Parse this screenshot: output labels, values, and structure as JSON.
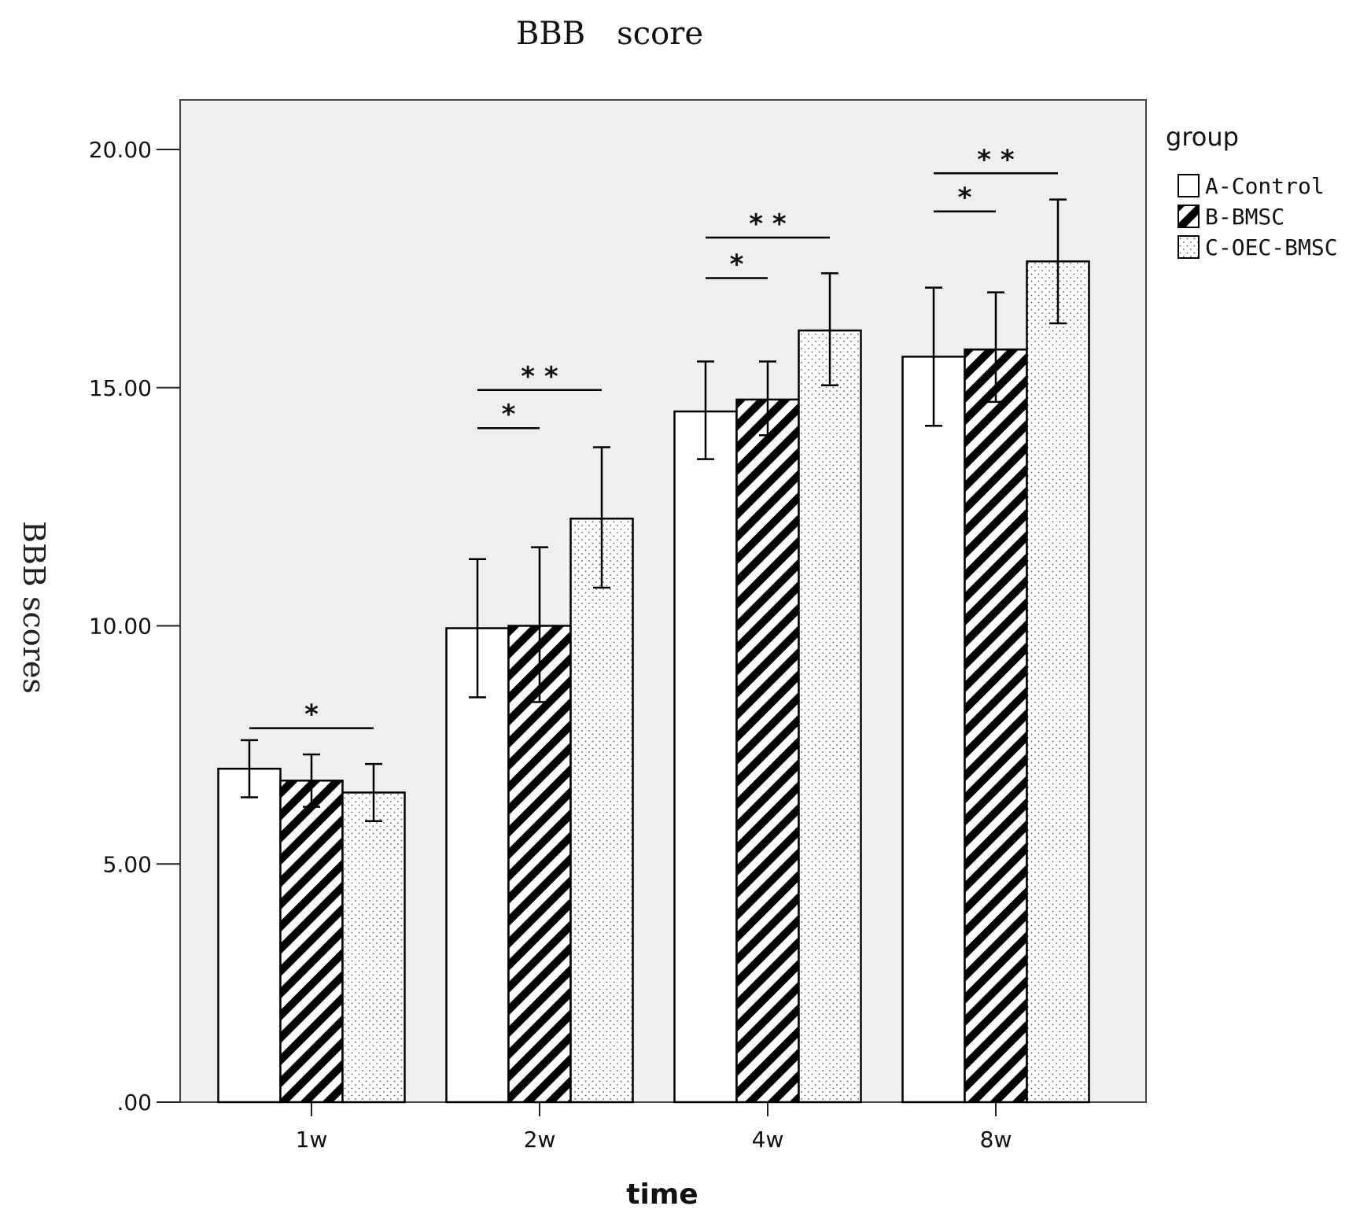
{
  "chart_data": {
    "type": "bar",
    "title": "BBB　score",
    "xlabel": "time",
    "ylabel": "BBB scores",
    "categories": [
      "1w",
      "2w",
      "4w",
      "8w"
    ],
    "ylim": [
      0,
      21
    ],
    "yticks": [
      0,
      5,
      10,
      15,
      20
    ],
    "ytick_labels": [
      ".00",
      "5.00",
      "10.00",
      "15.00",
      "20.00"
    ],
    "legend": {
      "title": "group",
      "placement": "top-right outside"
    },
    "series": [
      {
        "name": "A-Control",
        "pattern": "white",
        "values": [
          7.0,
          9.95,
          14.5,
          15.65
        ],
        "err_low": [
          6.4,
          8.5,
          13.5,
          14.2
        ],
        "err_high": [
          7.6,
          11.4,
          15.55,
          17.1
        ]
      },
      {
        "name": "B-BMSC",
        "pattern": "hatched",
        "values": [
          6.75,
          10.0,
          14.75,
          15.8
        ],
        "err_low": [
          6.2,
          8.4,
          14.0,
          14.7
        ],
        "err_high": [
          7.3,
          11.65,
          15.55,
          17.0
        ]
      },
      {
        "name": "C-OEC-BMSC",
        "pattern": "dotted",
        "values": [
          6.5,
          12.25,
          16.2,
          17.65
        ],
        "err_low": [
          5.9,
          10.8,
          15.05,
          16.35
        ],
        "err_high": [
          7.1,
          13.75,
          17.4,
          18.95
        ]
      }
    ],
    "annotations": [
      {
        "label": "*",
        "category": 0,
        "from": 0,
        "to": 2,
        "level": 7.85
      },
      {
        "label": "*",
        "category": 1,
        "from": 0,
        "to": 1,
        "level": 14.15
      },
      {
        "label": "* *",
        "category": 1,
        "from": 0,
        "to": 2,
        "level": 14.95
      },
      {
        "label": "*",
        "category": 2,
        "from": 0,
        "to": 1,
        "level": 17.3
      },
      {
        "label": "* *",
        "category": 2,
        "from": 0,
        "to": 2,
        "level": 18.15
      },
      {
        "label": "*",
        "category": 3,
        "from": 0,
        "to": 1,
        "level": 18.7
      },
      {
        "label": "* *",
        "category": 3,
        "from": 0,
        "to": 2,
        "level": 19.5
      }
    ]
  }
}
